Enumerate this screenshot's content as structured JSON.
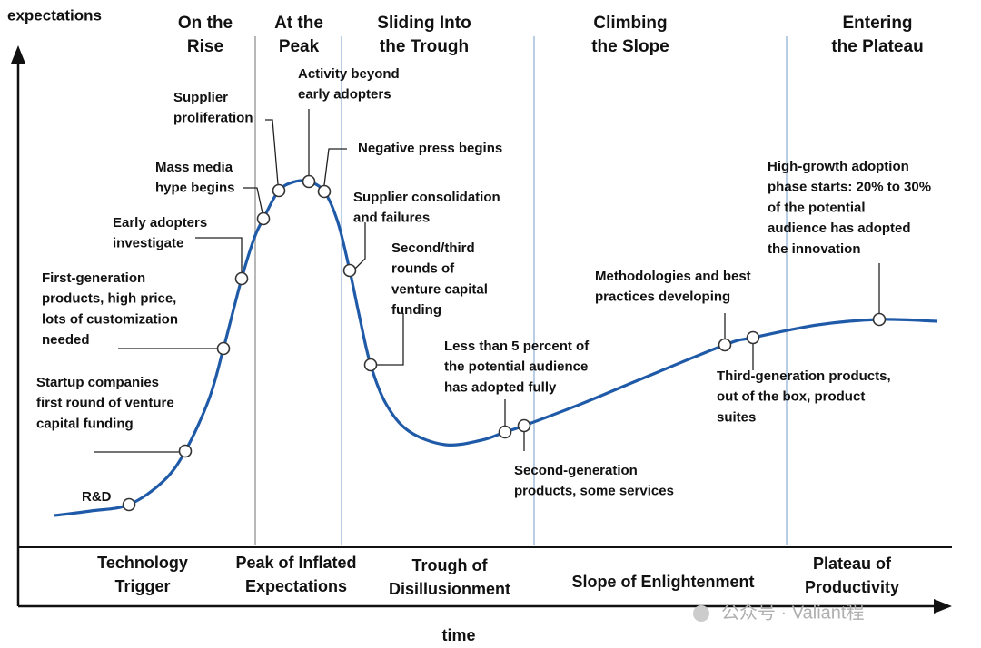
{
  "axes": {
    "y_label": "expectations",
    "x_label": "time"
  },
  "top_phases": [
    [
      "On the",
      "Rise"
    ],
    [
      "At the",
      "Peak"
    ],
    [
      "Sliding Into",
      "the Trough"
    ],
    [
      "Climbing",
      "the Slope"
    ],
    [
      "Entering",
      "the Plateau"
    ]
  ],
  "bottom_phases": [
    [
      "Technology",
      "Trigger"
    ],
    [
      "Peak of Inflated",
      "Expectations"
    ],
    [
      "Trough of",
      "Disillusionment"
    ],
    [
      "Slope of Enlightenment"
    ],
    [
      "Plateau of",
      "Productivity"
    ]
  ],
  "annotations": [
    [
      "R&D"
    ],
    [
      "Startup companies",
      "first round of venture",
      "capital funding"
    ],
    [
      "First-generation",
      "products, high price,",
      "lots of customization",
      "needed"
    ],
    [
      "Early adopters",
      "investigate"
    ],
    [
      "Mass media",
      "hype begins"
    ],
    [
      "Supplier",
      "proliferation"
    ],
    [
      "Activity beyond",
      "early adopters"
    ],
    [
      "Negative press begins"
    ],
    [
      "Supplier consolidation",
      "and failures"
    ],
    [
      "Second/third",
      "rounds of",
      "venture capital",
      "funding"
    ],
    [
      "Less than 5 percent of",
      "the potential audience",
      "has adopted fully"
    ],
    [
      "Second-generation",
      "products, some services"
    ],
    [
      "Methodologies and best",
      "practices developing"
    ],
    [
      "Third-generation products,",
      "out of the box, product",
      "suites"
    ],
    [
      "High-growth adoption",
      "phase starts: 20% to 30%",
      "of the potential",
      "audience has adopted",
      "the innovation"
    ]
  ],
  "watermark": "公众号 · Valiant程"
}
